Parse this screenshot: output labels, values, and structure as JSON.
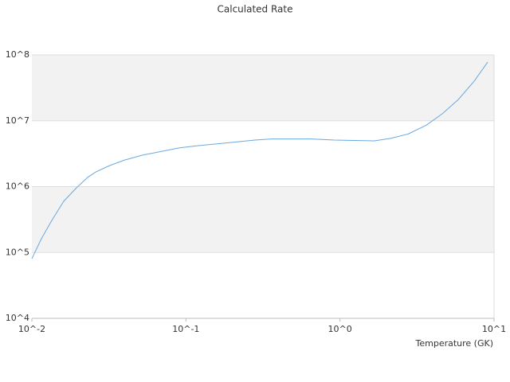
{
  "chart_data": {
    "type": "line",
    "title": "Calculated Rate",
    "x_label": "Temperature (GK)",
    "x": [
      0.01,
      0.0115,
      0.0135,
      0.0161,
      0.0193,
      0.023,
      0.026,
      0.032,
      0.04,
      0.052,
      0.071,
      0.091,
      0.122,
      0.175,
      0.28,
      0.36,
      0.65,
      0.92,
      1.67,
      2.13,
      2.77,
      3.64,
      4.62,
      5.86,
      7.43,
      9.1
    ],
    "values": [
      80500,
      160000,
      310000,
      600000,
      940000,
      1380000,
      1670000,
      2090000,
      2530000,
      3000000,
      3460000,
      3880000,
      4200000,
      4550000,
      5100000,
      5300000,
      5300000,
      5100000,
      4950000,
      5400000,
      6300000,
      8600000,
      12800000,
      21000000,
      40000000,
      78000000
    ],
    "color": "#6aa8e0",
    "xlim": [
      0.01,
      10
    ],
    "ylim": [
      10000,
      100000000
    ],
    "xticks": [
      {
        "value": 0.01,
        "label": "10^-2"
      },
      {
        "value": 0.1,
        "label": "10^-1"
      },
      {
        "value": 1,
        "label": "10^0"
      },
      {
        "value": 10,
        "label": "10^1"
      }
    ],
    "yticks": [
      {
        "value": 10000,
        "label": "10^4"
      },
      {
        "value": 100000,
        "label": "10^5"
      },
      {
        "value": 1000000,
        "label": "10^6"
      },
      {
        "value": 10000000,
        "label": "10^7"
      },
      {
        "value": 100000000,
        "label": "10^8"
      }
    ],
    "xscale": "log",
    "yscale": "log",
    "grid": true,
    "band_color": "#f2f2f2"
  }
}
